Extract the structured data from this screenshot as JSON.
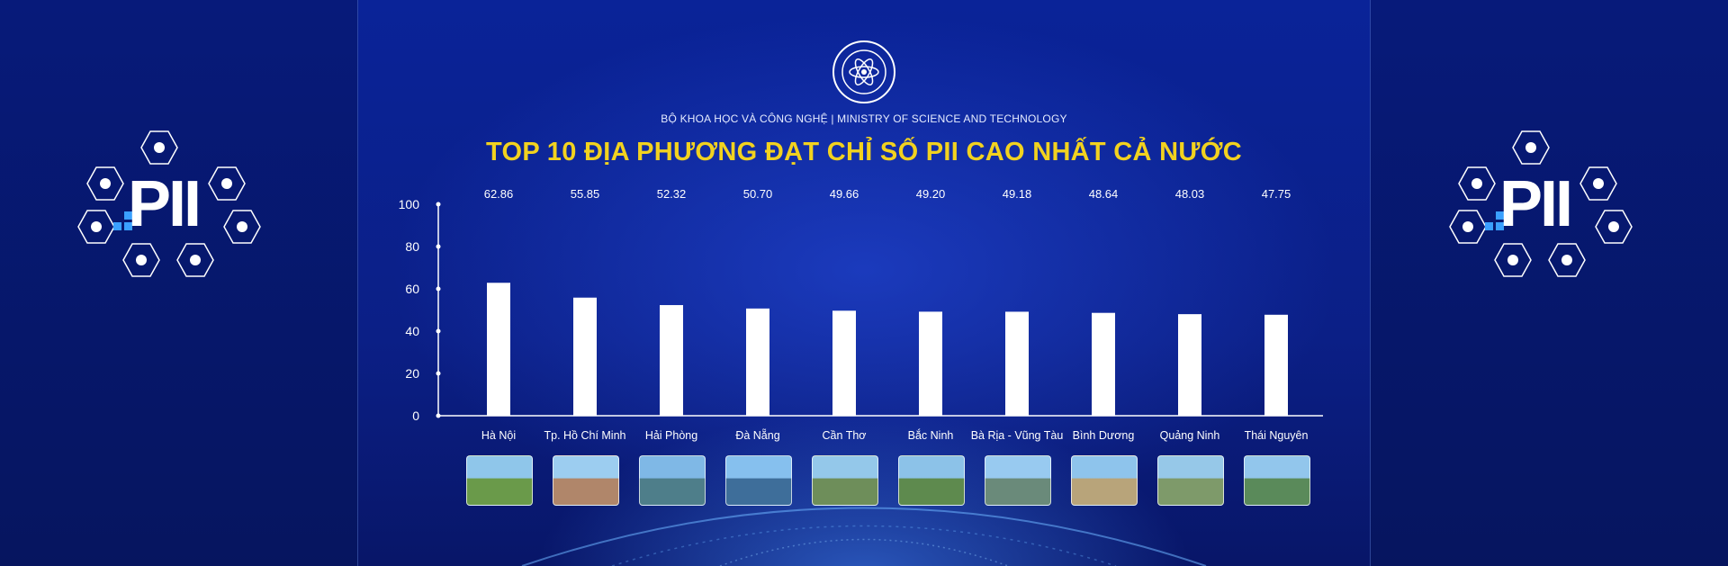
{
  "header": {
    "ministry": "BỘ KHOA HỌC VÀ CÔNG NGHỆ | MINISTRY OF SCIENCE AND TECHNOLOGY",
    "title": "TOP 10 ĐỊA PHƯƠNG ĐẠT CHỈ SỐ PII CAO NHẤT CẢ NƯỚC",
    "emblem_text": "BỘ KHOA HỌC VÀ CÔNG NGHỆ"
  },
  "side_logo": {
    "text": "PII",
    "icons": [
      "gavel-icon",
      "balance-scale-icon",
      "lightbulb-icon",
      "growth-chart-icon",
      "pyramid-icon",
      "building-icon",
      "coins-icon"
    ]
  },
  "colors": {
    "background": "#0a1e8c",
    "title": "#f2d21f",
    "bar": "#ffffff",
    "text": "#ffffff",
    "accent": "#3aa0ff"
  },
  "chart_data": {
    "type": "bar",
    "title": "",
    "xlabel": "",
    "ylabel": "",
    "ylim": [
      0,
      100
    ],
    "yticks": [
      0,
      20,
      40,
      60,
      80,
      100
    ],
    "grid": false,
    "categories": [
      "Hà Nội",
      "Tp. Hồ Chí Minh",
      "Hải Phòng",
      "Đà Nẵng",
      "Cần Thơ",
      "Bắc Ninh",
      "Bà Rịa - Vũng Tàu",
      "Bình Dương",
      "Quảng Ninh",
      "Thái Nguyên"
    ],
    "values": [
      62.86,
      55.85,
      52.32,
      50.7,
      49.66,
      49.2,
      49.18,
      48.64,
      48.03,
      47.75
    ],
    "value_labels": [
      "62.86",
      "55.85",
      "52.32",
      "50.70",
      "49.66",
      "49.20",
      "49.18",
      "48.64",
      "48.03",
      "47.75"
    ]
  }
}
